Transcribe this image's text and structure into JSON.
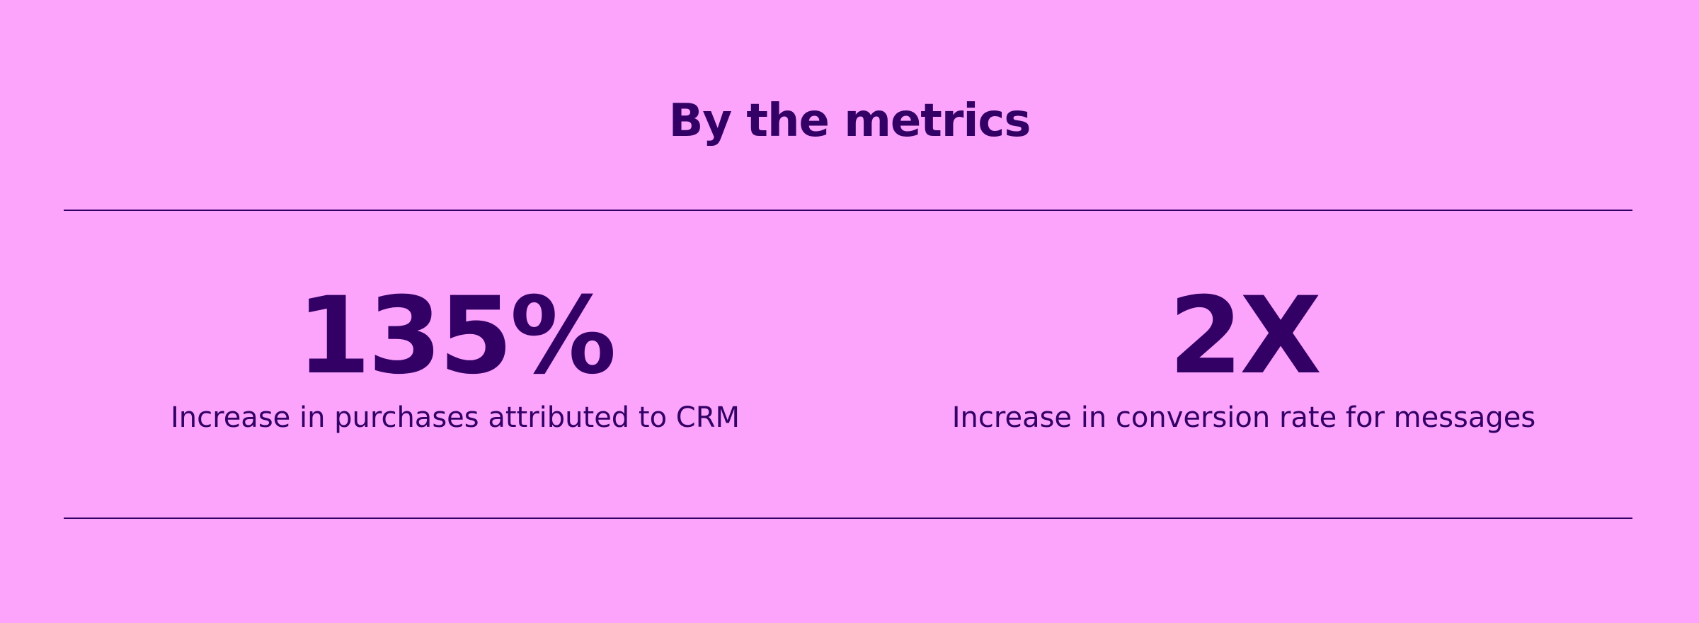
{
  "header": {
    "title": "By the metrics"
  },
  "metrics": [
    {
      "value": "135%",
      "label": "Increase in purchases attributed to CRM"
    },
    {
      "value": "2X",
      "label": "Increase in conversion rate for messages"
    }
  ]
}
